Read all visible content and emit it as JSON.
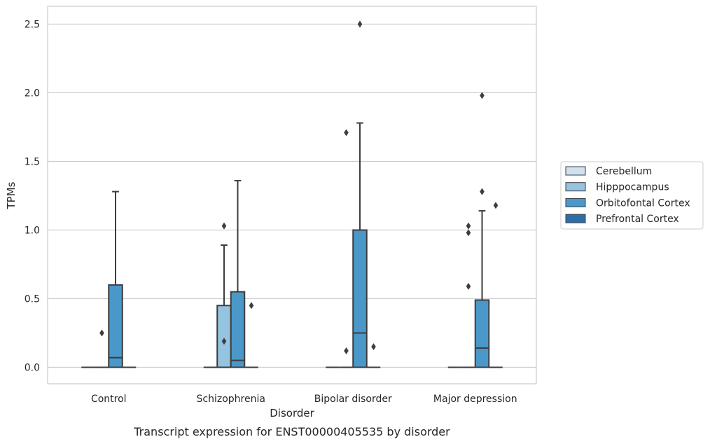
{
  "chart_data": {
    "type": "box",
    "title": "",
    "caption": "Transcript expression for ENST00000405535 by disorder",
    "xlabel": "Disorder",
    "ylabel": "TPMs",
    "ylim": [
      -0.12,
      2.63
    ],
    "yticks": [
      0.0,
      0.5,
      1.0,
      1.5,
      2.0,
      2.5
    ],
    "ytick_labels": [
      "0.0",
      "0.5",
      "1.0",
      "1.5",
      "2.0",
      "2.5"
    ],
    "grid": true,
    "legend_position": "right",
    "categories": [
      "Control",
      "Schizophrenia",
      "Bipolar disorder",
      "Major depression"
    ],
    "series": [
      {
        "name": "Cerebellum",
        "color": "#d0e1f2",
        "boxes": [
          {
            "q1": 0,
            "median": 0,
            "q3": 0,
            "whisker_low": 0,
            "whisker_high": 0,
            "outliers": []
          },
          {
            "q1": 0,
            "median": 0,
            "q3": 0,
            "whisker_low": 0,
            "whisker_high": 0,
            "outliers": []
          },
          {
            "q1": 0,
            "median": 0,
            "q3": 0,
            "whisker_low": 0,
            "whisker_high": 0,
            "outliers": []
          },
          {
            "q1": 0,
            "median": 0,
            "q3": 0,
            "whisker_low": 0,
            "whisker_high": 0,
            "outliers": []
          }
        ]
      },
      {
        "name": "Hipppocampus",
        "color": "#94c4df",
        "boxes": [
          {
            "q1": 0,
            "median": 0,
            "q3": 0,
            "whisker_low": 0,
            "whisker_high": 0,
            "outliers": [
              0.25
            ]
          },
          {
            "q1": 0,
            "median": 0,
            "q3": 0.45,
            "whisker_low": 0,
            "whisker_high": 0.89,
            "outliers": [
              1.03,
              0.19
            ]
          },
          {
            "q1": 0,
            "median": 0,
            "q3": 0,
            "whisker_low": 0,
            "whisker_high": 0,
            "outliers": [
              1.71,
              0.12
            ]
          },
          {
            "q1": 0,
            "median": 0,
            "q3": 0,
            "whisker_low": 0,
            "whisker_high": 0,
            "outliers": [
              1.03,
              0.98,
              0.59
            ]
          }
        ]
      },
      {
        "name": "Orbitofontal Cortex",
        "color": "#4a98c9",
        "boxes": [
          {
            "q1": 0,
            "median": 0.07,
            "q3": 0.6,
            "whisker_low": 0,
            "whisker_high": 1.28,
            "outliers": []
          },
          {
            "q1": 0,
            "median": 0.05,
            "q3": 0.55,
            "whisker_low": 0,
            "whisker_high": 1.36,
            "outliers": []
          },
          {
            "q1": 0,
            "median": 0.25,
            "q3": 1.0,
            "whisker_low": 0,
            "whisker_high": 1.78,
            "outliers": [
              2.5
            ]
          },
          {
            "q1": 0,
            "median": 0.14,
            "q3": 0.49,
            "whisker_low": 0,
            "whisker_high": 1.14,
            "outliers": [
              1.98,
              1.28
            ]
          }
        ]
      },
      {
        "name": "Prefrontal Cortex",
        "color": "#2e6ea8",
        "boxes": [
          {
            "q1": 0,
            "median": 0,
            "q3": 0,
            "whisker_low": 0,
            "whisker_high": 0,
            "outliers": []
          },
          {
            "q1": 0,
            "median": 0,
            "q3": 0,
            "whisker_low": 0,
            "whisker_high": 0,
            "outliers": [
              0.45
            ]
          },
          {
            "q1": 0,
            "median": 0,
            "q3": 0,
            "whisker_low": 0,
            "whisker_high": 0,
            "outliers": [
              0.15
            ]
          },
          {
            "q1": 0,
            "median": 0,
            "q3": 0,
            "whisker_low": 0,
            "whisker_high": 0,
            "outliers": [
              1.18
            ]
          }
        ]
      }
    ]
  }
}
